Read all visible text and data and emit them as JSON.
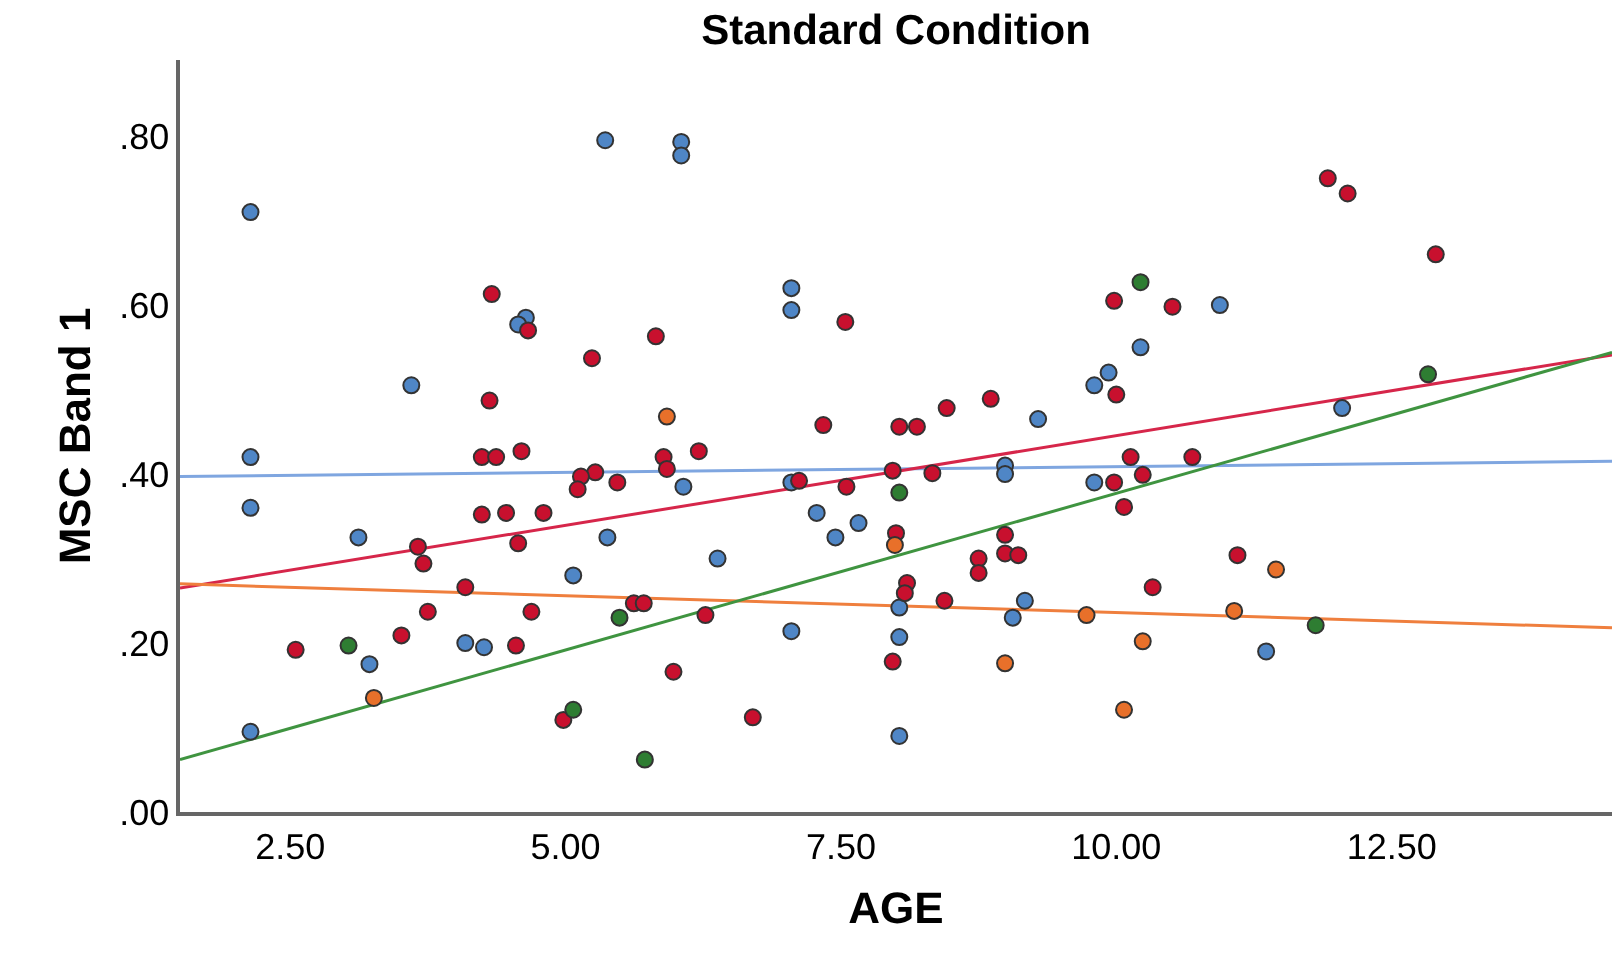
{
  "chart_data": {
    "type": "scatter",
    "title": "Standard Condition",
    "xlabel": "AGE",
    "ylabel": "MSC Band 1",
    "xlim": [
      1.5,
      14.5
    ],
    "ylim": [
      0,
      0.89
    ],
    "xticks": [
      {
        "value": 2.5,
        "label": "2.50"
      },
      {
        "value": 5,
        "label": "5.00"
      },
      {
        "value": 7.5,
        "label": "7.50"
      },
      {
        "value": 10,
        "label": "10.00"
      },
      {
        "value": 12.5,
        "label": "12.50"
      }
    ],
    "yticks": [
      {
        "value": 0,
        "label": ".00"
      },
      {
        "value": 0.2,
        "label": ".20"
      },
      {
        "value": 0.4,
        "label": ".40"
      },
      {
        "value": 0.6,
        "label": ".60"
      },
      {
        "value": 0.8,
        "label": ".80"
      }
    ],
    "grid": false,
    "marker": "circle",
    "series": [
      {
        "color": "#4f86c6",
        "x": [
          2.14,
          2.14,
          2.14,
          2.14,
          3.12,
          3.6,
          3.22,
          4.09,
          4.26,
          4.64,
          4.57,
          5.07,
          5.36,
          5.38,
          6.05,
          6.05,
          6.07,
          7.05,
          7.05,
          7.05,
          7.28,
          7.45,
          7.66,
          6.38,
          7.05,
          8.03,
          8.03,
          8.03,
          8.99,
          8.99,
          9.17,
          9.06,
          10.22,
          9.93,
          9.8,
          9.29,
          9.8,
          10.94,
          12.05,
          11.36
        ],
        "values": [
          0.71,
          0.42,
          0.36,
          0.095,
          0.325,
          0.505,
          0.175,
          0.2,
          0.195,
          0.585,
          0.577,
          0.28,
          0.795,
          0.325,
          0.793,
          0.777,
          0.385,
          0.62,
          0.594,
          0.39,
          0.354,
          0.325,
          0.342,
          0.3,
          0.214,
          0.242,
          0.207,
          0.09,
          0.41,
          0.4,
          0.25,
          0.23,
          0.55,
          0.52,
          0.505,
          0.465,
          0.39,
          0.6,
          0.478,
          0.19
        ]
      },
      {
        "color": "#c8102e",
        "x": [
          4.33,
          4.66,
          5.82,
          5.24,
          4.31,
          4.6,
          4.24,
          4.37,
          7.54,
          9.98,
          10.0,
          7.34,
          8.03,
          8.19,
          8.46,
          8.86,
          6.21,
          5.89,
          11.92,
          12.1,
          12.9,
          10.51,
          5.27,
          5.14,
          5.11,
          5.47,
          4.24,
          4.46,
          4.8,
          4.57,
          3.66,
          3.71,
          4.09,
          3.75,
          4.69,
          3.51,
          4.55,
          2.55,
          5.62,
          5.71,
          4.98,
          5.92,
          7.12,
          7.55,
          7.97,
          8.33,
          8.0,
          8.1,
          8.08,
          8.44,
          8.75,
          8.75,
          8.99,
          8.99,
          9.11,
          9.98,
          10.07,
          6.27,
          5.98,
          6.7,
          7.97,
          10.13,
          10.69,
          10.24,
          11.1,
          10.33
        ],
        "values": [
          0.613,
          0.57,
          0.563,
          0.537,
          0.487,
          0.427,
          0.42,
          0.42,
          0.58,
          0.605,
          0.494,
          0.458,
          0.456,
          0.456,
          0.478,
          0.489,
          0.427,
          0.42,
          0.75,
          0.732,
          0.66,
          0.598,
          0.402,
          0.397,
          0.382,
          0.39,
          0.352,
          0.354,
          0.354,
          0.318,
          0.314,
          0.294,
          0.266,
          0.237,
          0.237,
          0.209,
          0.197,
          0.192,
          0.247,
          0.247,
          0.109,
          0.406,
          0.392,
          0.385,
          0.404,
          0.401,
          0.33,
          0.271,
          0.259,
          0.25,
          0.3,
          0.283,
          0.328,
          0.306,
          0.304,
          0.39,
          0.361,
          0.233,
          0.166,
          0.112,
          0.178,
          0.42,
          0.42,
          0.399,
          0.304,
          0.266
        ]
      },
      {
        "color": "#e8702a",
        "x": [
          5.92,
          3.26,
          7.99,
          8.99,
          9.73,
          10.07,
          10.24,
          11.07,
          11.45
        ],
        "values": [
          0.468,
          0.135,
          0.316,
          0.176,
          0.233,
          0.121,
          0.202,
          0.238,
          0.287
        ]
      },
      {
        "color": "#2e7d32",
        "x": [
          3.03,
          5.07,
          5.49,
          5.72,
          8.03,
          10.22,
          12.83,
          11.81
        ],
        "values": [
          0.197,
          0.121,
          0.23,
          0.062,
          0.378,
          0.627,
          0.518,
          0.221
        ]
      },
      {
        "type": "line",
        "marker": "none",
        "color": "#7fa6e0",
        "x": [
          1.5,
          14.5
        ],
        "values": [
          0.397,
          0.415
        ]
      },
      {
        "type": "line",
        "marker": "none",
        "color": "#d6264a",
        "x": [
          1.5,
          14.5
        ],
        "values": [
          0.265,
          0.541
        ]
      },
      {
        "type": "line",
        "marker": "none",
        "color": "#ef7f3e",
        "x": [
          1.5,
          14.5
        ],
        "values": [
          0.27,
          0.218
        ]
      },
      {
        "type": "line",
        "marker": "none",
        "color": "#3f9440",
        "x": [
          1.5,
          14.5
        ],
        "values": [
          0.062,
          0.544
        ]
      }
    ]
  }
}
